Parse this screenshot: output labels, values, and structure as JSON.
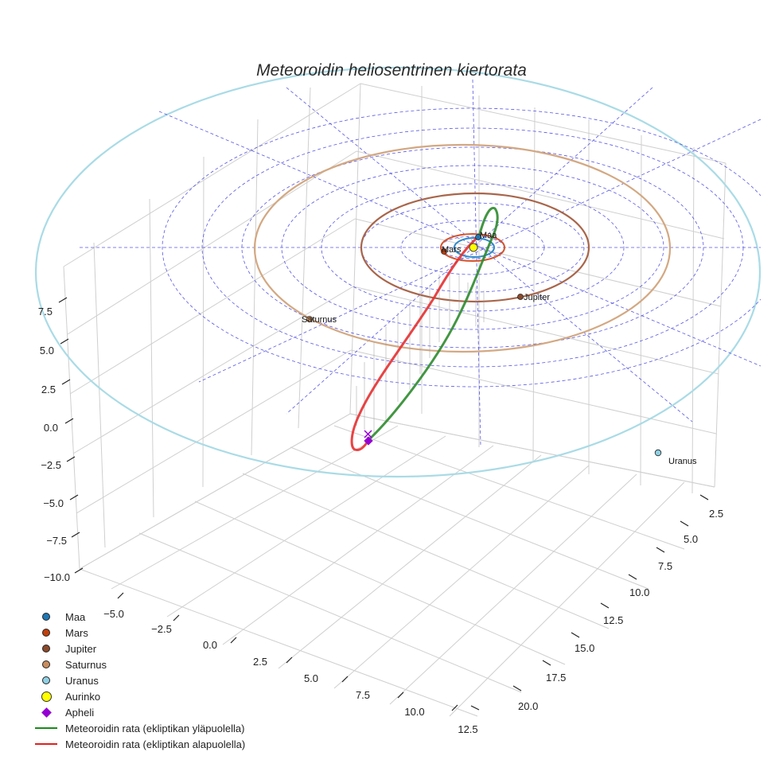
{
  "chart_data": {
    "type": "scatter",
    "title": "Meteoroidin heliosentrinen kiertorata",
    "axes": {
      "x_ticks": [
        "−5.0",
        "−2.5",
        "0.0",
        "2.5",
        "5.0",
        "7.5",
        "10.0",
        "12.5"
      ],
      "y_ticks": [
        "2.5",
        "5.0",
        "7.5",
        "10.0",
        "12.5",
        "15.0",
        "17.5",
        "20.0"
      ],
      "z_ticks": [
        "7.5",
        "5.0",
        "2.5",
        "0.0",
        "−2.5",
        "−5.0",
        "−7.5",
        "−10.0"
      ],
      "grid": true
    },
    "planets": [
      {
        "name": "Maa",
        "label": "Maa",
        "color": "#1f77b4",
        "orbit_color": "#2f89c8"
      },
      {
        "name": "Mars",
        "label": "Mars",
        "color": "#c0400d",
        "orbit_color": "#d4532b"
      },
      {
        "name": "Jupiter",
        "label": "Jupiter",
        "color": "#8b4a2b",
        "orbit_color": "#a8654a"
      },
      {
        "name": "Saturnus",
        "label": "Saturnus",
        "color": "#c98d5e",
        "orbit_color": "#d3a882"
      },
      {
        "name": "Uranus",
        "label": "Uranus",
        "color": "#8fd0e4",
        "orbit_color": "#a9dbe6"
      }
    ],
    "sun": {
      "name": "Aurinko",
      "color": "#ffff00"
    },
    "aphelion": {
      "name": "Apheli",
      "color": "#9400d3"
    },
    "series": [
      {
        "name": "Meteoroidin rata (ekliptikan yläpuolella)",
        "color": "#2e8b2e"
      },
      {
        "name": "Meteoroidin rata (ekliptikan alapuolella)",
        "color": "#e02020"
      }
    ],
    "legend_position": "bottom-left"
  },
  "legend": [
    {
      "label": "Maa",
      "marker": "dot",
      "color": "#1f77b4"
    },
    {
      "label": "Mars",
      "marker": "dot",
      "color": "#c0400d"
    },
    {
      "label": "Jupiter",
      "marker": "dot",
      "color": "#8b4a2b"
    },
    {
      "label": "Saturnus",
      "marker": "dot",
      "color": "#c98d5e"
    },
    {
      "label": "Uranus",
      "marker": "dot",
      "color": "#8fd0e4"
    },
    {
      "label": "Aurinko",
      "marker": "sun",
      "color": "#ffff00"
    },
    {
      "label": "Apheli",
      "marker": "diamond",
      "color": "#9400d3"
    },
    {
      "label": "Meteoroidin rata (ekliptikan yläpuolella)",
      "marker": "line",
      "color": "#1a8a1a"
    },
    {
      "label": "Meteoroidin rata (ekliptikan alapuolella)",
      "marker": "line",
      "color": "#e02020"
    }
  ]
}
